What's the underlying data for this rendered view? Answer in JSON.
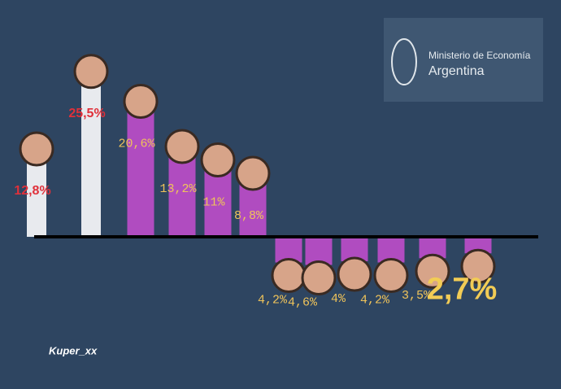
{
  "chart_data": {
    "type": "bar",
    "categories": [
      null,
      null,
      null,
      null,
      null,
      null,
      null,
      null,
      null,
      null,
      null,
      null
    ],
    "values": [
      12.8,
      25.5,
      20.6,
      13.2,
      11,
      8.8,
      4.2,
      4.6,
      4,
      4.2,
      3.5,
      2.7
    ],
    "value_labels": [
      "12,8%",
      "25,5%",
      "20,6%",
      "13,2%",
      "11%",
      "8,8%",
      "4,2%",
      "4,6%",
      "4%",
      "4,2%",
      "3,5%",
      "2,7%"
    ],
    "color": "#b04cc0",
    "logo": {
      "line1": "Ministerio de Economía",
      "line2": "Argentina"
    },
    "watermark": "Kuper_xx"
  }
}
